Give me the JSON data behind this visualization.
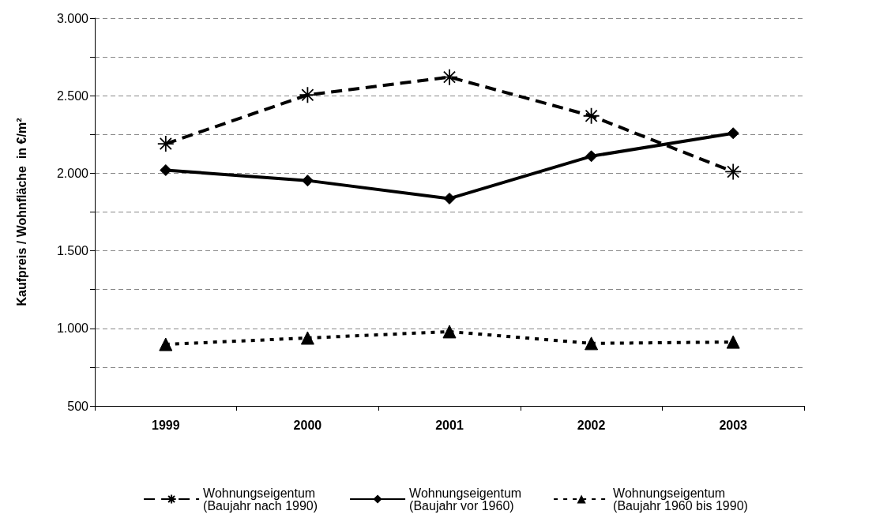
{
  "chart_data": {
    "type": "line",
    "ylabel": "Kaufpreis / Wohnfläche  in €/m²",
    "categories": [
      "1999",
      "2000",
      "2001",
      "2002",
      "2003"
    ],
    "series": [
      {
        "name": "Wohnungseigentum\n(Baujahr nach 1990)",
        "color": "#000000",
        "marker": "cross",
        "line_style": "dashed",
        "values": [
          2190,
          2505,
          2620,
          2370,
          2010
        ]
      },
      {
        "name": "Wohnungseigentum\n(Baujahr vor 1960)",
        "color": "#000000",
        "marker": "diamond",
        "line_style": "solid",
        "values": [
          2020,
          1953,
          1837,
          2110,
          2258
        ]
      },
      {
        "name": "Wohnungseigentum\n(Baujahr 1960 bis 1990)",
        "color": "#000000",
        "marker": "triangle",
        "line_style": "dotted",
        "values": [
          897,
          938,
          979,
          903,
          912
        ]
      }
    ],
    "ylim": [
      500,
      3000
    ],
    "yticks": [
      {
        "value": 500,
        "label": "500"
      },
      {
        "value": 750,
        "label": null
      },
      {
        "value": 1000,
        "label": "1.000"
      },
      {
        "value": 1250,
        "label": null
      },
      {
        "value": 1500,
        "label": "1.500"
      },
      {
        "value": 1750,
        "label": null
      },
      {
        "value": 2000,
        "label": "2.000"
      },
      {
        "value": 2250,
        "label": null
      },
      {
        "value": 2500,
        "label": "2.500"
      },
      {
        "value": 2750,
        "label": null
      },
      {
        "value": 3000,
        "label": "3.000"
      }
    ],
    "grid": "y",
    "legend": "bottom"
  }
}
